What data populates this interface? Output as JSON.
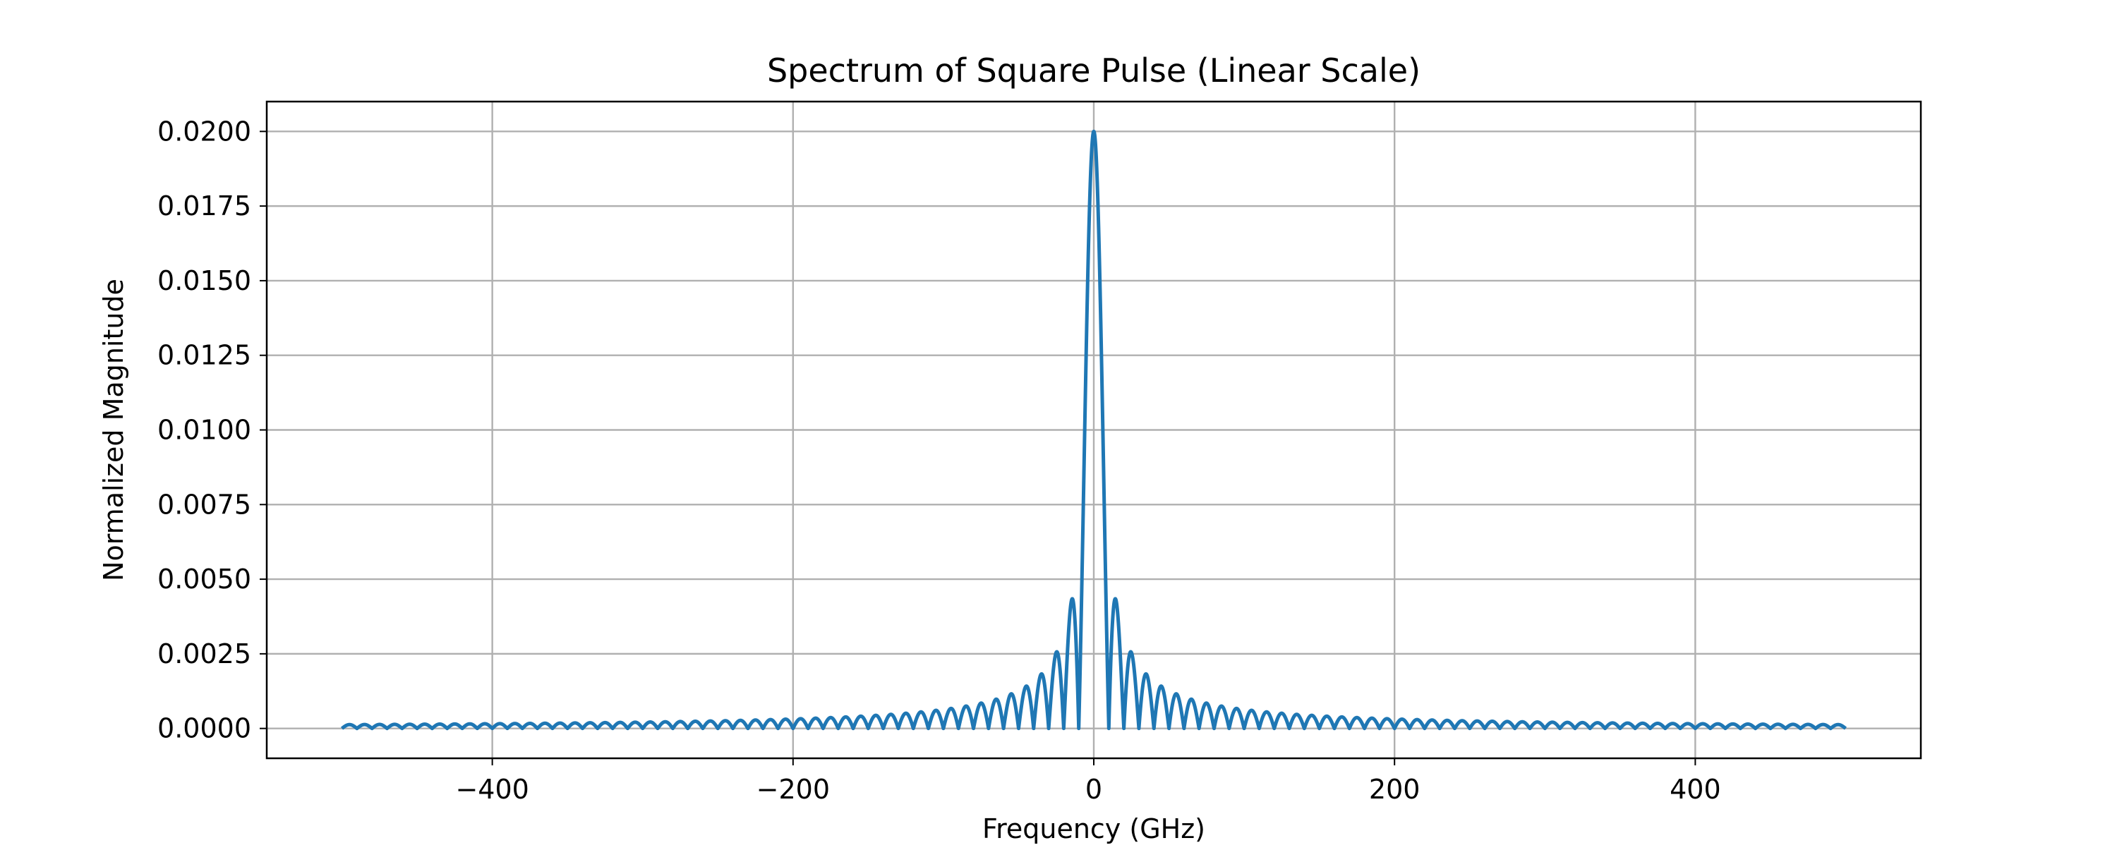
{
  "chart_data": {
    "type": "line",
    "title": "Spectrum of Square Pulse (Linear Scale)",
    "xlabel": "Frequency (GHz)",
    "ylabel": "Normalized Magnitude",
    "xlim": [
      -550,
      550
    ],
    "ylim": [
      -0.001,
      0.021
    ],
    "xticks": [
      -400,
      -200,
      0,
      200,
      400
    ],
    "xtick_labels": [
      "−400",
      "−200",
      "0",
      "200",
      "400"
    ],
    "yticks": [
      0.0,
      0.0025,
      0.005,
      0.0075,
      0.01,
      0.0125,
      0.015,
      0.0175,
      0.02
    ],
    "ytick_labels": [
      "0.0000",
      "0.0025",
      "0.0050",
      "0.0075",
      "0.0100",
      "0.0125",
      "0.0150",
      "0.0175",
      "0.0200"
    ],
    "grid": true,
    "legend": "none",
    "series": [
      {
        "color": "#1f77b4",
        "x_range": [
          -500,
          500
        ],
        "peak": 0.02,
        "null_spacing": 10,
        "form": "|sinc|",
        "points": [
          [
            -500,
            0.0
          ],
          [
            -495,
            0.00013
          ],
          [
            -200,
            0.0003
          ],
          [
            -100,
            0.0006
          ],
          [
            -85,
            0.00075
          ],
          [
            -55,
            0.00116
          ],
          [
            -45,
            0.00141
          ],
          [
            -35,
            0.00182
          ],
          [
            -25,
            0.00255
          ],
          [
            -15,
            0.00424
          ],
          [
            -10,
            0.0
          ],
          [
            0,
            0.02
          ],
          [
            10,
            0.0
          ],
          [
            15,
            0.00424
          ],
          [
            25,
            0.00255
          ],
          [
            35,
            0.00182
          ],
          [
            45,
            0.00141
          ],
          [
            55,
            0.00116
          ],
          [
            85,
            0.00075
          ],
          [
            100,
            0.0006
          ],
          [
            200,
            0.0003
          ],
          [
            495,
            0.00013
          ],
          [
            500,
            0.0
          ]
        ]
      }
    ]
  }
}
